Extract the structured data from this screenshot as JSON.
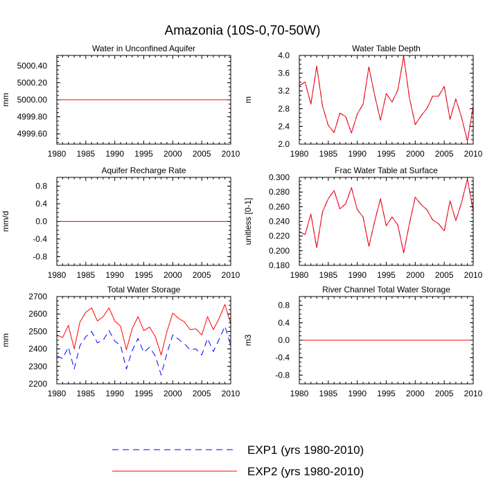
{
  "figure": {
    "title": "Amazonia (10S-0,70-50W)"
  },
  "legend": {
    "entries": [
      {
        "name": "EXP1 (yrs 1980-2010)",
        "color": "#0000ff",
        "style": "dashed"
      },
      {
        "name": "EXP2 (yrs 1980-2010)",
        "color": "#ff0000",
        "style": "solid"
      }
    ]
  },
  "chart_data": [
    {
      "type": "line",
      "title": "Water in Unconfined Aquifer",
      "ylabel": "mm",
      "xlim": [
        1980,
        2010
      ],
      "ylim": [
        4999.48,
        5000.52
      ],
      "xticks": [
        1980,
        1985,
        1990,
        1995,
        2000,
        2005,
        2010
      ],
      "yticks": [
        4999.6,
        4999.8,
        5000.0,
        5000.2,
        5000.4
      ],
      "ytick_labels": [
        "4999.60",
        "4999.80",
        "5000.00",
        "5000.20",
        "5000.40"
      ],
      "x": [
        1980,
        2010
      ],
      "series": [
        {
          "name": "EXP1 (yrs 1980-2010)",
          "values": [
            5000.0,
            5000.0
          ]
        },
        {
          "name": "EXP2 (yrs 1980-2010)",
          "values": [
            5000.0,
            5000.0
          ]
        }
      ]
    },
    {
      "type": "line",
      "title": "Water Table Depth",
      "ylabel": "m",
      "xlim": [
        1980,
        2010
      ],
      "ylim": [
        2.0,
        4.0
      ],
      "xticks": [
        1980,
        1985,
        1990,
        1995,
        2000,
        2005,
        2010
      ],
      "yticks": [
        2.0,
        2.4,
        2.8,
        3.2,
        3.6,
        4.0
      ],
      "ytick_labels": [
        "2.0",
        "2.4",
        "2.8",
        "3.2",
        "3.6",
        "4.0"
      ],
      "x": [
        1980,
        1981,
        1982,
        1983,
        1984,
        1985,
        1986,
        1987,
        1988,
        1989,
        1990,
        1991,
        1992,
        1993,
        1994,
        1995,
        1996,
        1997,
        1998,
        1999,
        2000,
        2001,
        2002,
        2003,
        2004,
        2005,
        2006,
        2007,
        2008,
        2009,
        2010
      ],
      "series": [
        {
          "name": "EXP1 (yrs 1980-2010)",
          "values": [
            3.32,
            3.4,
            2.9,
            3.76,
            2.86,
            2.42,
            2.26,
            2.7,
            2.62,
            2.25,
            2.68,
            2.9,
            3.74,
            3.1,
            2.54,
            3.14,
            2.95,
            3.22,
            3.98,
            3.04,
            2.44,
            2.64,
            2.8,
            3.08,
            3.08,
            3.3,
            2.56,
            3.02,
            2.6,
            2.06,
            2.86
          ]
        },
        {
          "name": "EXP2 (yrs 1980-2010)",
          "values": [
            3.32,
            3.4,
            2.9,
            3.76,
            2.86,
            2.42,
            2.26,
            2.7,
            2.62,
            2.25,
            2.68,
            2.9,
            3.74,
            3.1,
            2.54,
            3.14,
            2.95,
            3.22,
            3.98,
            3.04,
            2.44,
            2.64,
            2.8,
            3.08,
            3.08,
            3.3,
            2.56,
            3.02,
            2.6,
            2.06,
            2.86
          ]
        }
      ]
    },
    {
      "type": "line",
      "title": "Aquifer Recharge Rate",
      "ylabel": "mm/d",
      "xlim": [
        1980,
        2010
      ],
      "ylim": [
        -1.0,
        1.0
      ],
      "xticks": [
        1980,
        1985,
        1990,
        1995,
        2000,
        2005,
        2010
      ],
      "yticks": [
        -0.8,
        -0.4,
        0.0,
        0.4,
        0.8
      ],
      "ytick_labels": [
        "-0.8",
        "-0.4",
        "0.0",
        "0.4",
        "0.8"
      ],
      "x": [
        1980,
        2010
      ],
      "series": [
        {
          "name": "EXP1 (yrs 1980-2010)",
          "values": [
            0.0,
            0.0
          ]
        },
        {
          "name": "EXP2 (yrs 1980-2010)",
          "values": [
            0.0,
            0.0
          ]
        }
      ]
    },
    {
      "type": "line",
      "title": "Frac Water Table at Surface",
      "ylabel": "unitless [0-1]",
      "xlim": [
        1980,
        2010
      ],
      "ylim": [
        0.18,
        0.3
      ],
      "xticks": [
        1980,
        1985,
        1990,
        1995,
        2000,
        2005,
        2010
      ],
      "yticks": [
        0.18,
        0.2,
        0.22,
        0.24,
        0.26,
        0.28,
        0.3
      ],
      "ytick_labels": [
        "0.180",
        "0.200",
        "0.220",
        "0.240",
        "0.260",
        "0.280",
        "0.300"
      ],
      "x": [
        1980,
        1981,
        1982,
        1983,
        1984,
        1985,
        1986,
        1987,
        1988,
        1989,
        1990,
        1991,
        1992,
        1993,
        1994,
        1995,
        1996,
        1997,
        1998,
        1999,
        2000,
        2001,
        2002,
        2003,
        2004,
        2005,
        2006,
        2007,
        2008,
        2009,
        2010
      ],
      "series": [
        {
          "name": "EXP1 (yrs 1980-2010)",
          "values": [
            0.226,
            0.222,
            0.25,
            0.204,
            0.253,
            0.271,
            0.282,
            0.257,
            0.264,
            0.286,
            0.256,
            0.246,
            0.206,
            0.24,
            0.271,
            0.234,
            0.246,
            0.235,
            0.197,
            0.237,
            0.273,
            0.263,
            0.256,
            0.242,
            0.237,
            0.227,
            0.268,
            0.241,
            0.266,
            0.298,
            0.254
          ]
        },
        {
          "name": "EXP2 (yrs 1980-2010)",
          "values": [
            0.226,
            0.222,
            0.25,
            0.204,
            0.253,
            0.271,
            0.282,
            0.257,
            0.264,
            0.286,
            0.256,
            0.246,
            0.206,
            0.24,
            0.271,
            0.234,
            0.246,
            0.235,
            0.197,
            0.237,
            0.273,
            0.263,
            0.256,
            0.242,
            0.237,
            0.227,
            0.268,
            0.241,
            0.266,
            0.298,
            0.254
          ]
        }
      ]
    },
    {
      "type": "line",
      "title": "Total Water Storage",
      "ylabel": "mm",
      "xlim": [
        1980,
        2010
      ],
      "ylim": [
        2200,
        2700
      ],
      "xticks": [
        1980,
        1985,
        1990,
        1995,
        2000,
        2005,
        2010
      ],
      "yticks": [
        2200,
        2300,
        2400,
        2500,
        2600,
        2700
      ],
      "ytick_labels": [
        "2200",
        "2300",
        "2400",
        "2500",
        "2600",
        "2700"
      ],
      "x": [
        1980,
        1981,
        1982,
        1983,
        1984,
        1985,
        1986,
        1987,
        1988,
        1989,
        1990,
        1991,
        1992,
        1993,
        1994,
        1995,
        1996,
        1997,
        1998,
        1999,
        2000,
        2001,
        2002,
        2003,
        2004,
        2005,
        2006,
        2007,
        2008,
        2009,
        2010
      ],
      "series": [
        {
          "name": "EXP1 (yrs 1980-2010)",
          "values": [
            2360,
            2345,
            2410,
            2285,
            2420,
            2470,
            2500,
            2435,
            2450,
            2505,
            2445,
            2420,
            2285,
            2390,
            2460,
            2380,
            2410,
            2360,
            2250,
            2375,
            2480,
            2455,
            2430,
            2395,
            2400,
            2365,
            2460,
            2385,
            2455,
            2530,
            2420
          ]
        },
        {
          "name": "EXP2 (yrs 1980-2010)",
          "values": [
            2480,
            2465,
            2535,
            2400,
            2555,
            2610,
            2635,
            2560,
            2585,
            2635,
            2560,
            2530,
            2395,
            2515,
            2585,
            2505,
            2525,
            2470,
            2365,
            2500,
            2605,
            2575,
            2555,
            2510,
            2515,
            2480,
            2585,
            2510,
            2575,
            2655,
            2545
          ]
        }
      ]
    },
    {
      "type": "line",
      "title": "River Channel Total Water Storage",
      "ylabel": "m3",
      "xlim": [
        1980,
        2010
      ],
      "ylim": [
        -1.0,
        1.0
      ],
      "xticks": [
        1980,
        1985,
        1990,
        1995,
        2000,
        2005,
        2010
      ],
      "yticks": [
        -0.8,
        -0.4,
        0.0,
        0.4,
        0.8
      ],
      "ytick_labels": [
        "-0.8",
        "-0.4",
        "0.0",
        "0.4",
        "0.8"
      ],
      "x": [
        1980,
        2010
      ],
      "series": [
        {
          "name": "EXP1 (yrs 1980-2010)",
          "values": [
            0.0,
            0.0
          ]
        },
        {
          "name": "EXP2 (yrs 1980-2010)",
          "values": [
            0.0,
            0.0
          ]
        }
      ]
    }
  ]
}
